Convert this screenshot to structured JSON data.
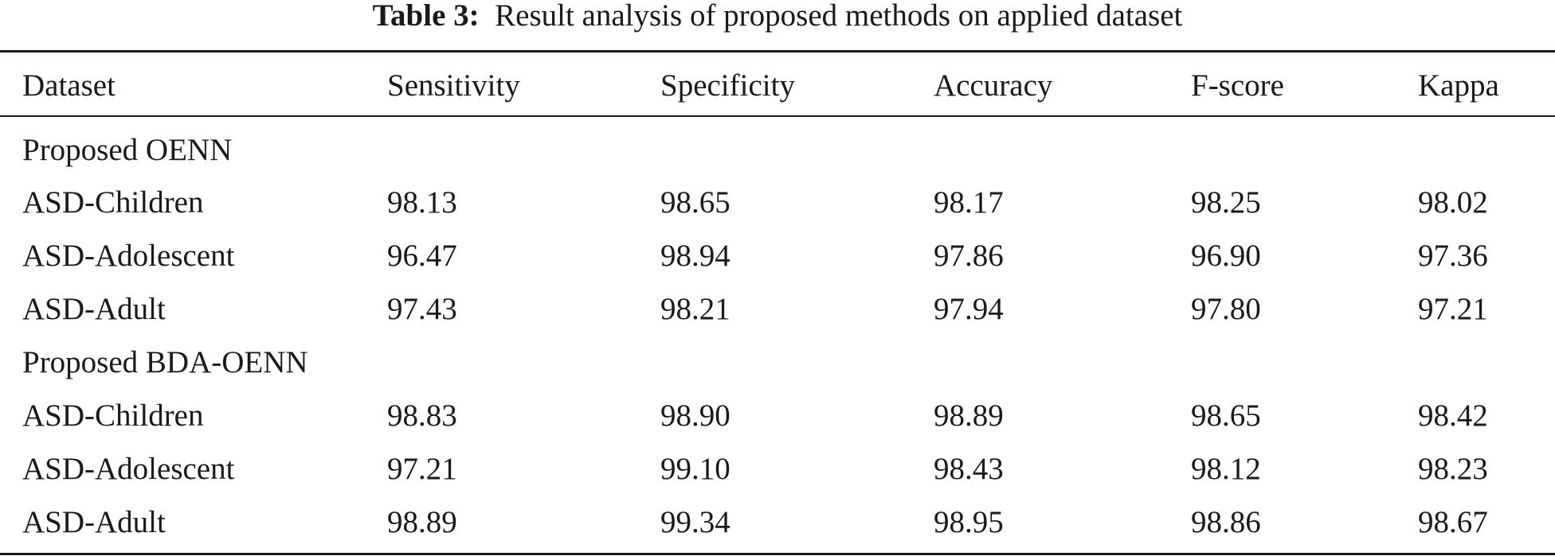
{
  "caption": {
    "label": "Table 3:",
    "text": "Result analysis of proposed methods on applied dataset"
  },
  "columns": [
    "Dataset",
    "Sensitivity",
    "Specificity",
    "Accuracy",
    "F-score",
    "Kappa"
  ],
  "groups": [
    {
      "title": "Proposed OENN",
      "rows": [
        [
          "ASD-Children",
          "98.13",
          "98.65",
          "98.17",
          "98.25",
          "98.02"
        ],
        [
          "ASD-Adolescent",
          "96.47",
          "98.94",
          "97.86",
          "96.90",
          "97.36"
        ],
        [
          "ASD-Adult",
          "97.43",
          "98.21",
          "97.94",
          "97.80",
          "97.21"
        ]
      ]
    },
    {
      "title": "Proposed BDA-OENN",
      "rows": [
        [
          "ASD-Children",
          "98.83",
          "98.90",
          "98.89",
          "98.65",
          "98.42"
        ],
        [
          "ASD-Adolescent",
          "97.21",
          "99.10",
          "98.43",
          "98.12",
          "98.23"
        ],
        [
          "ASD-Adult",
          "98.89",
          "99.34",
          "98.95",
          "98.86",
          "98.67"
        ]
      ]
    }
  ]
}
